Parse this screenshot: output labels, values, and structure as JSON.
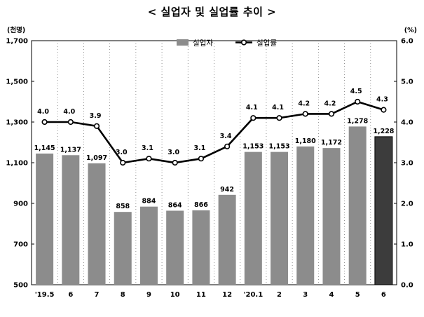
{
  "chart_data": {
    "type": "bar+line",
    "title": "< 실업자 및 실업률 추이 >",
    "categories": [
      "'19.5",
      "6",
      "7",
      "8",
      "9",
      "10",
      "11",
      "12",
      "'20.1",
      "2",
      "3",
      "4",
      "5",
      "6"
    ],
    "series": [
      {
        "name": "실업자",
        "type": "bar",
        "axis": "left",
        "values": [
          1145,
          1137,
          1097,
          858,
          884,
          864,
          866,
          942,
          1153,
          1153,
          1180,
          1172,
          1278,
          1228
        ],
        "labels": [
          "1,145",
          "1,137",
          "1,097",
          "858",
          "884",
          "864",
          "866",
          "942",
          "1,153",
          "1,153",
          "1,180",
          "1,172",
          "1,278",
          "1,228"
        ],
        "color": "#8c8c8c",
        "highlight_color": "#3c3c3c",
        "highlight_index": 13
      },
      {
        "name": "실업률",
        "type": "line",
        "axis": "right",
        "values": [
          4.0,
          4.0,
          3.9,
          3.0,
          3.1,
          3.0,
          3.1,
          3.4,
          4.1,
          4.1,
          4.2,
          4.2,
          4.5,
          4.3
        ],
        "labels": [
          "4.0",
          "4.0",
          "3.9",
          "3.0",
          "3.1",
          "3.0",
          "3.1",
          "3.4",
          "4.1",
          "4.1",
          "4.2",
          "4.2",
          "4.5",
          "4.3"
        ],
        "color": "#000000"
      }
    ],
    "y_left": {
      "unit": "(천명)",
      "ylim": [
        500,
        1700
      ],
      "ticks": [
        "500",
        "700",
        "900",
        "1,100",
        "1,300",
        "1,500",
        "1,700"
      ],
      "tick_values": [
        500,
        700,
        900,
        1100,
        1300,
        1500,
        1700
      ]
    },
    "y_right": {
      "unit": "(%)",
      "ylim": [
        0,
        6
      ],
      "ticks": [
        "0.0",
        "1.0",
        "2.0",
        "3.0",
        "4.0",
        "5.0",
        "6.0"
      ],
      "tick_values": [
        0,
        1,
        2,
        3,
        4,
        5,
        6
      ]
    },
    "grid": "vertical-dotted",
    "legend": {
      "placement": "top-center",
      "items": [
        "실업자",
        "실업률"
      ]
    }
  }
}
